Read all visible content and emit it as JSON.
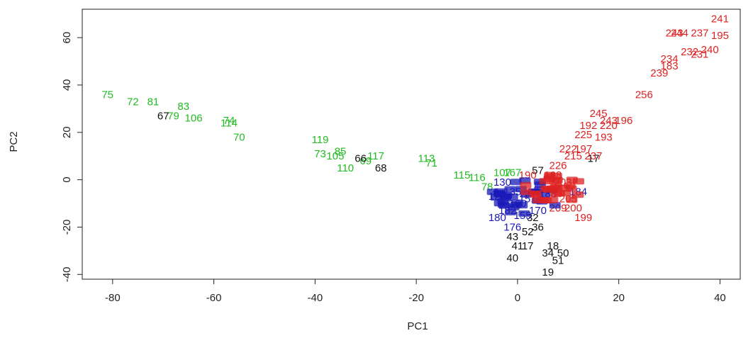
{
  "chart_data": {
    "type": "scatter",
    "xlabel": "PC1",
    "ylabel": "PC2",
    "xlim": [
      -86,
      44
    ],
    "ylim": [
      -42,
      72
    ],
    "x_ticks": [
      "-80",
      "-60",
      "-40",
      "-20",
      "0",
      "20",
      "40"
    ],
    "y_ticks": [
      "-40",
      "-20",
      "0",
      "20",
      "40",
      "60"
    ],
    "grid": false,
    "legend": "none",
    "colors": {
      "green": "#22bb22",
      "black": "#111111",
      "blue": "#1a1ab8",
      "red": "#dd2222"
    },
    "series": [
      {
        "color": "green",
        "points": [
          {
            "label": "75",
            "x": -81,
            "y": 36
          },
          {
            "label": "72",
            "x": -76,
            "y": 33
          },
          {
            "label": "81",
            "x": -72,
            "y": 33
          },
          {
            "label": "83",
            "x": -66,
            "y": 31
          },
          {
            "label": "79",
            "x": -68,
            "y": 27
          },
          {
            "label": "106",
            "x": -64,
            "y": 26
          },
          {
            "label": "74",
            "x": -57,
            "y": 25
          },
          {
            "label": "114",
            "x": -57,
            "y": 24
          },
          {
            "label": "70",
            "x": -55,
            "y": 18
          },
          {
            "label": "119",
            "x": -39,
            "y": 17
          },
          {
            "label": "73",
            "x": -39,
            "y": 11
          },
          {
            "label": "85",
            "x": -35,
            "y": 12
          },
          {
            "label": "105",
            "x": -36,
            "y": 10
          },
          {
            "label": "110",
            "x": -34,
            "y": 5
          },
          {
            "label": "117",
            "x": -28,
            "y": 10
          },
          {
            "label": "69",
            "x": -30,
            "y": 8
          },
          {
            "label": "113",
            "x": -18,
            "y": 9
          },
          {
            "label": "71",
            "x": -17,
            "y": 7
          },
          {
            "label": "115",
            "x": -11,
            "y": 2
          },
          {
            "label": "116",
            "x": -8,
            "y": 1
          },
          {
            "label": "78",
            "x": -6,
            "y": -3
          },
          {
            "label": "107",
            "x": -3,
            "y": 3
          },
          {
            "label": "167",
            "x": -1,
            "y": 3
          }
        ]
      },
      {
        "color": "black",
        "points": [
          {
            "label": "67",
            "x": -70,
            "y": 27
          },
          {
            "label": "66",
            "x": -31,
            "y": 9
          },
          {
            "label": "68",
            "x": -27,
            "y": 5
          },
          {
            "label": "57",
            "x": 4,
            "y": 4
          },
          {
            "label": "17",
            "x": 15,
            "y": 9
          },
          {
            "label": "32",
            "x": 3,
            "y": -16
          },
          {
            "label": "36",
            "x": 4,
            "y": -20
          },
          {
            "label": "52",
            "x": 2,
            "y": -22
          },
          {
            "label": "43",
            "x": -1,
            "y": -24
          },
          {
            "label": "41",
            "x": 0,
            "y": -28
          },
          {
            "label": "17",
            "x": 2,
            "y": -28
          },
          {
            "label": "18",
            "x": 7,
            "y": -28
          },
          {
            "label": "34",
            "x": 6,
            "y": -31
          },
          {
            "label": "40",
            "x": -1,
            "y": -33
          },
          {
            "label": "50",
            "x": 9,
            "y": -31
          },
          {
            "label": "51",
            "x": 8,
            "y": -34
          },
          {
            "label": "19",
            "x": 6,
            "y": -39
          }
        ]
      },
      {
        "color": "blue",
        "points": [
          {
            "label": "130",
            "x": -3,
            "y": -1
          },
          {
            "label": "127",
            "x": -4,
            "y": -7
          },
          {
            "label": "135",
            "x": -1,
            "y": -5
          },
          {
            "label": "184",
            "x": 12,
            "y": -5
          },
          {
            "label": "180",
            "x": -4,
            "y": -16
          },
          {
            "label": "176",
            "x": -1,
            "y": -20
          },
          {
            "label": "160",
            "x": 0,
            "y": -10
          },
          {
            "label": "151",
            "x": 2,
            "y": -8
          },
          {
            "label": "170",
            "x": 4,
            "y": -13
          },
          {
            "label": "182",
            "x": -2,
            "y": -13
          },
          {
            "label": "155",
            "x": 1,
            "y": -15
          },
          {
            "label": "188",
            "x": 6,
            "y": -6
          }
        ]
      },
      {
        "color": "red",
        "points": [
          {
            "label": "241",
            "x": 40,
            "y": 68
          },
          {
            "label": "243",
            "x": 31,
            "y": 62
          },
          {
            "label": "244",
            "x": 32,
            "y": 62
          },
          {
            "label": "237",
            "x": 36,
            "y": 62
          },
          {
            "label": "195",
            "x": 40,
            "y": 61
          },
          {
            "label": "240",
            "x": 38,
            "y": 55
          },
          {
            "label": "232",
            "x": 34,
            "y": 54
          },
          {
            "label": "231",
            "x": 36,
            "y": 53
          },
          {
            "label": "234",
            "x": 30,
            "y": 51
          },
          {
            "label": "183",
            "x": 30,
            "y": 48
          },
          {
            "label": "239",
            "x": 28,
            "y": 45
          },
          {
            "label": "256",
            "x": 25,
            "y": 36
          },
          {
            "label": "245",
            "x": 16,
            "y": 28
          },
          {
            "label": "243",
            "x": 18,
            "y": 25
          },
          {
            "label": "196",
            "x": 21,
            "y": 25
          },
          {
            "label": "192",
            "x": 14,
            "y": 23
          },
          {
            "label": "220",
            "x": 18,
            "y": 23
          },
          {
            "label": "225",
            "x": 13,
            "y": 19
          },
          {
            "label": "193",
            "x": 17,
            "y": 18
          },
          {
            "label": "222",
            "x": 10,
            "y": 13
          },
          {
            "label": "197",
            "x": 13,
            "y": 13
          },
          {
            "label": "215",
            "x": 11,
            "y": 10
          },
          {
            "label": "237",
            "x": 15,
            "y": 10
          },
          {
            "label": "226",
            "x": 8,
            "y": 6
          },
          {
            "label": "190",
            "x": 2,
            "y": 2
          },
          {
            "label": "198",
            "x": 7,
            "y": 2
          },
          {
            "label": "203",
            "x": 9,
            "y": -1
          },
          {
            "label": "210",
            "x": 6,
            "y": -4
          },
          {
            "label": "205",
            "x": 10,
            "y": -8
          },
          {
            "label": "200",
            "x": 11,
            "y": -12
          },
          {
            "label": "199",
            "x": 13,
            "y": -16
          },
          {
            "label": "209",
            "x": 8,
            "y": -12
          },
          {
            "label": "212",
            "x": 3,
            "y": -6
          }
        ]
      }
    ]
  }
}
